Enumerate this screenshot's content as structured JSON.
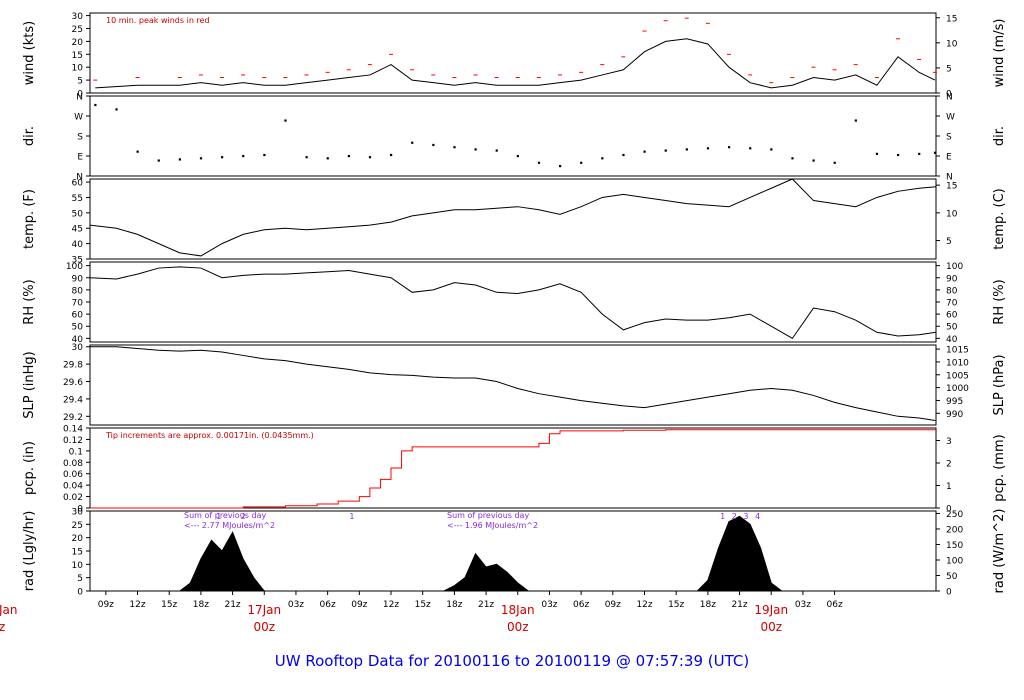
{
  "chart_data": {
    "type": "line",
    "title": "UW Rooftop Data for 20100116  to  20100119 @ 07:57:39  (UTC)",
    "x_ticks": [
      "09z",
      "12z",
      "15z",
      "18z",
      "21z",
      "00z",
      "03z",
      "06z",
      "09z",
      "12z",
      "15z",
      "18z",
      "21z",
      "00z",
      "03z",
      "06z",
      "09z",
      "12z",
      "15z",
      "18z",
      "21z",
      "00z",
      "03z",
      "06z"
    ],
    "date_labels": [
      {
        "label": "17Jan",
        "hour": "00z"
      },
      {
        "label": "18Jan",
        "hour": "00z"
      },
      {
        "label": "19Jan",
        "hour": "00z"
      }
    ],
    "cut_labels": {
      "label": "Jan",
      "hour": "z"
    },
    "x_range_hours": [
      -16.5,
      63.6
    ],
    "panels": [
      {
        "id": "wind",
        "ylabel": "wind (kts)",
        "ylabel_right": "wind (m/s)",
        "ylim": [
          0,
          31
        ],
        "yticks": [
          0,
          5,
          10,
          15,
          20,
          25,
          30
        ],
        "right_ticks": [
          0,
          5,
          10,
          15
        ],
        "right_factor": 1.9438,
        "note": "10 min. peak winds in red",
        "series": [
          {
            "name": "wind speed",
            "color": "#000000",
            "x": [
              -16,
              -12,
              -8,
              -6,
              -4,
              -2,
              0,
              2,
              4,
              6,
              8,
              10,
              12,
              14,
              16,
              18,
              20,
              22,
              24,
              26,
              28,
              30,
              32,
              34,
              36,
              38,
              40,
              42,
              44,
              46,
              48,
              50,
              52,
              54,
              56,
              58,
              60,
              62,
              63.5
            ],
            "y": [
              2,
              3,
              3,
              4,
              3,
              4,
              3,
              3,
              4,
              5,
              6,
              7,
              11,
              5,
              4,
              3,
              4,
              3,
              3,
              3,
              4,
              5,
              7,
              9,
              16,
              20,
              21,
              19,
              10,
              4,
              2,
              3,
              6,
              5,
              7,
              3,
              14,
              8,
              5
            ]
          },
          {
            "name": "peak wind",
            "color": "#ff0000",
            "x": [
              -16,
              -12,
              -8,
              -6,
              -4,
              -2,
              0,
              2,
              4,
              6,
              8,
              10,
              12,
              14,
              16,
              18,
              20,
              22,
              24,
              26,
              28,
              30,
              32,
              34,
              36,
              38,
              40,
              42,
              44,
              46,
              48,
              50,
              52,
              54,
              56,
              58,
              60,
              62,
              63.5
            ],
            "y": [
              5,
              6,
              6,
              7,
              6,
              7,
              6,
              6,
              7,
              8,
              9,
              11,
              15,
              9,
              7,
              6,
              7,
              6,
              6,
              6,
              7,
              8,
              11,
              14,
              24,
              28,
              29,
              27,
              15,
              7,
              4,
              6,
              10,
              9,
              11,
              6,
              21,
              13,
              8
            ]
          }
        ]
      },
      {
        "id": "dir",
        "ylabel": "dir.",
        "ylabel_right": "dir.",
        "ylim": [
          0,
          360
        ],
        "ytick_values": [
          0,
          90,
          180,
          270,
          360
        ],
        "ytick_labels": [
          "N",
          "E",
          "S",
          "W",
          "N"
        ],
        "series": [
          {
            "name": "wind direction",
            "color": "#000000",
            "style": "dots",
            "x": [
              -16,
              -14,
              -12,
              -10,
              -8,
              -6,
              -4,
              -2,
              0,
              2,
              4,
              6,
              8,
              10,
              12,
              14,
              16,
              18,
              20,
              22,
              24,
              26,
              28,
              30,
              32,
              34,
              36,
              38,
              40,
              42,
              44,
              46,
              48,
              50,
              52,
              54,
              56,
              58,
              60,
              62,
              63.5
            ],
            "y": [
              320,
              300,
              110,
              70,
              75,
              80,
              85,
              90,
              95,
              250,
              85,
              80,
              90,
              85,
              95,
              150,
              140,
              130,
              120,
              115,
              90,
              60,
              45,
              60,
              80,
              95,
              110,
              115,
              120,
              125,
              130,
              125,
              120,
              80,
              70,
              60,
              250,
              100,
              95,
              100,
              105
            ]
          }
        ]
      },
      {
        "id": "temp",
        "ylabel": "temp. (F)",
        "ylabel_right": "temp. (C)",
        "ylim": [
          35,
          61
        ],
        "yticks": [
          35,
          40,
          45,
          50,
          55,
          60
        ],
        "right_ticks": [
          5,
          10,
          15
        ],
        "series": [
          {
            "name": "temperature",
            "color": "#000000",
            "x": [
              -16.5,
              -14,
              -12,
              -10,
              -8,
              -6,
              -4,
              -2,
              0,
              2,
              4,
              6,
              8,
              10,
              12,
              14,
              16,
              18,
              20,
              22,
              24,
              26,
              28,
              30,
              32,
              34,
              36,
              38,
              40,
              42,
              44,
              46,
              48,
              50,
              52,
              54,
              56,
              58,
              60,
              62,
              63.6
            ],
            "y": [
              46,
              45,
              43,
              40,
              37,
              36,
              40,
              43,
              44.5,
              45,
              44.5,
              45,
              45.5,
              46,
              47,
              49,
              50,
              51,
              51,
              51.5,
              52,
              51,
              49.5,
              52,
              55,
              56,
              55,
              54,
              53,
              52.5,
              52,
              55,
              58,
              61,
              54,
              53,
              52,
              55,
              57,
              58,
              58.5
            ]
          }
        ]
      },
      {
        "id": "rh",
        "ylabel": "RH (%)",
        "ylabel_right": "RH (%)",
        "ylim": [
          37,
          103
        ],
        "yticks": [
          40,
          50,
          60,
          70,
          80,
          90,
          100
        ],
        "series": [
          {
            "name": "relative humidity",
            "color": "#000000",
            "x": [
              -16.5,
              -14,
              -12,
              -10,
              -8,
              -6,
              -4,
              -2,
              0,
              2,
              4,
              6,
              8,
              10,
              12,
              14,
              16,
              18,
              20,
              22,
              24,
              26,
              28,
              30,
              32,
              34,
              36,
              38,
              40,
              42,
              44,
              46,
              48,
              50,
              52,
              54,
              56,
              58,
              60,
              62,
              63.6
            ],
            "y": [
              90,
              89,
              93,
              98,
              99,
              98,
              90,
              92,
              93,
              93,
              94,
              95,
              96,
              93,
              90,
              78,
              80,
              86,
              84,
              78,
              77,
              80,
              85,
              78,
              60,
              47,
              53,
              56,
              55,
              55,
              57,
              60,
              50,
              40,
              65,
              62,
              55,
              45,
              42,
              43,
              45
            ]
          }
        ]
      },
      {
        "id": "slp",
        "ylabel": "SLP (inHg)",
        "ylabel_right": "SLP (hPa)",
        "ylim": [
          29.1,
          30.02
        ],
        "yticks": [
          29.2,
          29.4,
          29.6,
          29.8,
          30.0
        ],
        "right_ticks": [
          990,
          995,
          1000,
          1005,
          1010,
          1015
        ],
        "series": [
          {
            "name": "sea level pressure",
            "color": "#000000",
            "x": [
              -16.5,
              -14,
              -12,
              -10,
              -8,
              -6,
              -4,
              -2,
              0,
              2,
              4,
              6,
              8,
              10,
              12,
              14,
              16,
              18,
              20,
              22,
              24,
              26,
              28,
              30,
              32,
              34,
              36,
              38,
              40,
              42,
              44,
              46,
              48,
              50,
              52,
              54,
              56,
              58,
              60,
              62,
              63.6
            ],
            "y": [
              30.0,
              30.0,
              29.98,
              29.96,
              29.95,
              29.96,
              29.94,
              29.9,
              29.86,
              29.84,
              29.8,
              29.77,
              29.74,
              29.7,
              29.68,
              29.67,
              29.65,
              29.64,
              29.64,
              29.6,
              29.52,
              29.46,
              29.42,
              29.38,
              29.35,
              29.32,
              29.3,
              29.34,
              29.38,
              29.42,
              29.46,
              29.5,
              29.52,
              29.5,
              29.44,
              29.36,
              29.3,
              29.25,
              29.2,
              29.18,
              29.15
            ]
          }
        ]
      },
      {
        "id": "pcp",
        "ylabel": "pcp. (in)",
        "ylabel_right": "pcp. (mm)",
        "ylim": [
          0,
          0.14
        ],
        "yticks": [
          0,
          0.02,
          0.04,
          0.06,
          0.08,
          0.1,
          0.12,
          0.14
        ],
        "right_ticks": [
          0,
          1,
          2,
          3
        ],
        "note": "Tip increments are approx. 0.00171in. (0.0435mm.)",
        "series": [
          {
            "name": "precipitation",
            "color": "#ff0000",
            "style": "step",
            "x": [
              -16.5,
              -6,
              -2,
              2,
              5,
              7,
              9,
              10,
              11,
              12,
              13,
              14,
              16,
              18,
              20,
              24,
              26,
              27,
              28,
              30,
              34,
              38,
              42,
              46,
              63.6
            ],
            "y": [
              0,
              0,
              0.002,
              0.004,
              0.007,
              0.012,
              0.02,
              0.035,
              0.05,
              0.07,
              0.1,
              0.107,
              0.107,
              0.107,
              0.107,
              0.107,
              0.113,
              0.13,
              0.135,
              0.135,
              0.136,
              0.137,
              0.137,
              0.137,
              0.137
            ]
          }
        ]
      },
      {
        "id": "rad",
        "ylabel": "rad (Lgly/hr)",
        "ylabel_right": "rad (W/m^2)",
        "ylim": [
          0,
          30
        ],
        "yticks": [
          0,
          5,
          10,
          15,
          20,
          25,
          30
        ],
        "right_ticks": [
          0,
          50,
          100,
          150,
          200,
          250,
          300
        ],
        "right_factor": 0.1163,
        "series": [
          {
            "name": "day1",
            "color": "#000000",
            "style": "fill",
            "x": [
              -8,
              -7,
              -6,
              -5,
              -4,
              -3,
              -2,
              -1,
              0
            ],
            "y": [
              0,
              3,
              12,
              19,
              15,
              22,
              12,
              5,
              0
            ]
          },
          {
            "name": "day2",
            "color": "#000000",
            "style": "fill",
            "x": [
              17,
              18,
              19,
              20,
              21,
              22,
              23,
              24,
              25
            ],
            "y": [
              0,
              2,
              5,
              14,
              9,
              10,
              7,
              3,
              0
            ]
          },
          {
            "name": "day3",
            "color": "#000000",
            "style": "fill",
            "x": [
              41,
              42,
              43,
              44,
              45,
              46,
              47,
              48,
              49
            ],
            "y": [
              0,
              4,
              16,
              26,
              28,
              25,
              16,
              3,
              0
            ]
          }
        ],
        "annotations": [
          {
            "x": -7.6,
            "text": "Sum of previous day"
          },
          {
            "x": -7.6,
            "text": "<--- 2.77 MJoules/m^2"
          },
          {
            "x": 17.3,
            "text": "Sum of previous day"
          },
          {
            "x": 17.3,
            "text": "<--- 1.96 MJoules/m^2"
          }
        ],
        "markers": [
          {
            "x": -4.3,
            "text": "1"
          },
          {
            "x": -2.0,
            "text": "2"
          },
          {
            "x": 8.3,
            "text": "1"
          },
          {
            "x": 43.4,
            "text": "1"
          },
          {
            "x": 44.5,
            "text": "2"
          },
          {
            "x": 45.6,
            "text": "3"
          },
          {
            "x": 46.7,
            "text": "4"
          }
        ]
      }
    ]
  }
}
